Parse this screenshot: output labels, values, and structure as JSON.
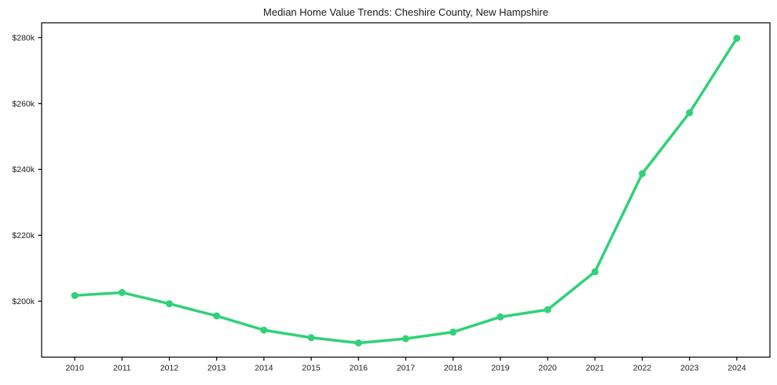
{
  "figure": {
    "background": "#ffffff"
  },
  "chart_data": {
    "type": "line",
    "title": "Median Home Value Trends: Cheshire County, New Hampshire",
    "xlabel": "",
    "ylabel": "",
    "x": [
      2010,
      2011,
      2012,
      2013,
      2014,
      2015,
      2016,
      2017,
      2018,
      2019,
      2020,
      2021,
      2022,
      2023,
      2024
    ],
    "series": [
      {
        "name": "Median Home Value",
        "values": [
          201700,
          202600,
          199200,
          195500,
          191200,
          188900,
          187300,
          188600,
          190600,
          195200,
          197400,
          208900,
          238700,
          257200,
          279800
        ]
      }
    ],
    "xlim": [
      2009.3,
      2024.7
    ],
    "ylim": [
      183000,
      284500
    ],
    "xticks": [
      2010,
      2011,
      2012,
      2013,
      2014,
      2015,
      2016,
      2017,
      2018,
      2019,
      2020,
      2021,
      2022,
      2023,
      2024
    ],
    "xtick_labels": [
      "2010",
      "2011",
      "2012",
      "2013",
      "2014",
      "2015",
      "2016",
      "2017",
      "2018",
      "2019",
      "2020",
      "2021",
      "2022",
      "2023",
      "2024"
    ],
    "yticks": [
      200000,
      220000,
      240000,
      260000,
      280000
    ],
    "ytick_labels": [
      "$200k",
      "$220k",
      "$240k",
      "$260k",
      "$280k"
    ],
    "grid": false,
    "legend": null,
    "colors": {
      "line": "#30d177",
      "marker": "#30d177",
      "axis": "#000000",
      "text": "#1a1a1a",
      "background": "#ffffff"
    },
    "style": {
      "line_width": 3.5,
      "marker_radius": 4.5,
      "frame_width": 1.2,
      "tick_length": 4.5
    }
  }
}
